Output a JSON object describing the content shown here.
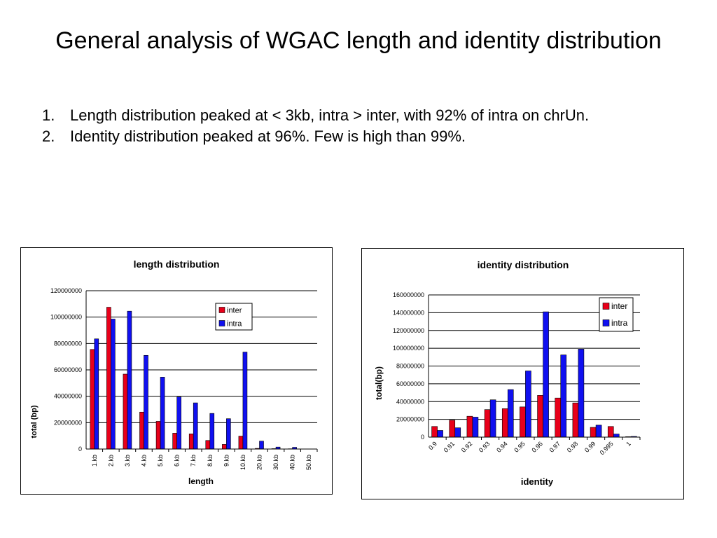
{
  "slide": {
    "title": "General analysis of WGAC length and identity distribution",
    "points": [
      {
        "num": "1.",
        "text": "Length distribution peaked at < 3kb, intra > inter, with 92% of intra on chrUn."
      },
      {
        "num": "2.",
        "text": "Identity distribution peaked at 96%.  Few is high than 99%."
      }
    ]
  },
  "colors": {
    "inter": "#e8001a",
    "intra": "#1010f0"
  },
  "chart_data": [
    {
      "type": "bar",
      "title": "length distribution",
      "xlabel": "length",
      "ylabel": "total (bp)",
      "ylim": [
        0,
        120000000
      ],
      "yticks": [
        0,
        20000000,
        40000000,
        60000000,
        80000000,
        100000000,
        120000000
      ],
      "grid": true,
      "legend_position": "top-right",
      "categories": [
        "1.kb",
        "2.kb",
        "3.kb",
        "4.kb",
        "5.kb",
        "6.kb",
        "7.kb",
        "8.kb",
        "9.kb",
        "10.kb",
        "20.kb",
        "30.kb",
        "40.kb",
        "50.kb"
      ],
      "series": [
        {
          "name": "inter",
          "values": [
            75500000,
            107500000,
            56800000,
            28000000,
            21000000,
            12000000,
            11500000,
            6500000,
            3500000,
            9800000,
            500000,
            300000,
            200000,
            100000
          ]
        },
        {
          "name": "intra",
          "values": [
            83500000,
            98500000,
            104500000,
            71000000,
            54500000,
            39500000,
            35000000,
            27000000,
            23000000,
            73500000,
            6000000,
            1500000,
            1300000,
            0
          ]
        }
      ]
    },
    {
      "type": "bar",
      "title": "identity distribution",
      "xlabel": "identity",
      "ylabel": "total(bp)",
      "ylim": [
        0,
        160000000
      ],
      "yticks": [
        0,
        20000000,
        40000000,
        60000000,
        80000000,
        100000000,
        120000000,
        140000000,
        160000000
      ],
      "grid": true,
      "legend_position": "top-right",
      "categories": [
        "0.9",
        "0.91",
        "0.92",
        "0.93",
        "0.94",
        "0.95",
        "0.96",
        "0.97",
        "0.98",
        "0.99",
        "0.995",
        "1"
      ],
      "series": [
        {
          "name": "inter",
          "values": [
            12000000,
            19000000,
            23500000,
            31000000,
            32000000,
            34000000,
            47000000,
            44000000,
            38500000,
            11000000,
            12000000,
            500000
          ]
        },
        {
          "name": "intra",
          "values": [
            7500000,
            10500000,
            22500000,
            42000000,
            53500000,
            74500000,
            141000000,
            92500000,
            99000000,
            13500000,
            3500000,
            800000
          ]
        }
      ]
    }
  ]
}
